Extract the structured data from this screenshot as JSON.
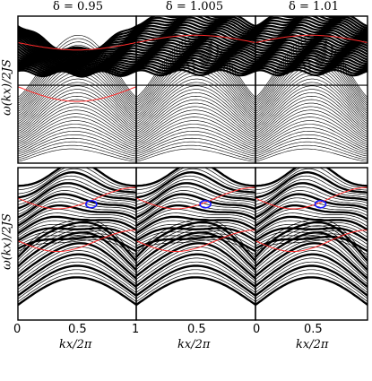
{
  "figure": {
    "column_titles": [
      "δ = 0.95",
      "δ = 1.005",
      "δ = 1.01"
    ],
    "ylabel_top": "ω(kx)/2JS",
    "ylabel_bottom": "ω(kx)/2JS",
    "xlabel": "kx/2π",
    "xticks": [
      "0",
      "0.5",
      "1"
    ]
  },
  "colors": {
    "bands": "#000000",
    "edge_modes": "#ff2a2a",
    "highlight_ring": "#1a1aff"
  },
  "chart_data": [
    {
      "type": "line",
      "panel": "top",
      "title": "δ = 0.95",
      "xlabel": "",
      "ylabel": "ω(kx)/2JS",
      "xlim": [
        0,
        1
      ],
      "grid": false,
      "gap": true,
      "edge_modes": 2,
      "highlight": false
    },
    {
      "type": "line",
      "panel": "top",
      "title": "δ = 1.005",
      "xlabel": "",
      "ylabel": "",
      "xlim": [
        0,
        1
      ],
      "grid": false,
      "gap": true,
      "edge_modes": 1,
      "highlight": false
    },
    {
      "type": "line",
      "panel": "top",
      "title": "δ = 1.01",
      "xlabel": "",
      "ylabel": "",
      "xlim": [
        0,
        1
      ],
      "grid": false,
      "gap": true,
      "edge_modes": 1,
      "highlight": false
    },
    {
      "type": "line",
      "panel": "bottom",
      "title": "",
      "xlabel": "kx/2π",
      "ylabel": "ω(kx)/2JS",
      "xlim": [
        0,
        1
      ],
      "xticks": [
        0,
        0.5,
        1
      ],
      "grid": false,
      "edge_modes": 2,
      "highlight": true,
      "highlight_kx": 0.62
    },
    {
      "type": "line",
      "panel": "bottom",
      "title": "",
      "xlabel": "kx/2π",
      "ylabel": "",
      "xlim": [
        0,
        1
      ],
      "xticks": [
        0,
        0.5,
        1
      ],
      "grid": false,
      "edge_modes": 2,
      "highlight": true,
      "highlight_kx": 0.58
    },
    {
      "type": "line",
      "panel": "bottom",
      "title": "",
      "xlabel": "kx/2π",
      "ylabel": "",
      "xlim": [
        0,
        1
      ],
      "xticks": [
        0,
        0.5,
        1
      ],
      "grid": false,
      "edge_modes": 2,
      "highlight": true,
      "highlight_kx": 0.58
    }
  ]
}
